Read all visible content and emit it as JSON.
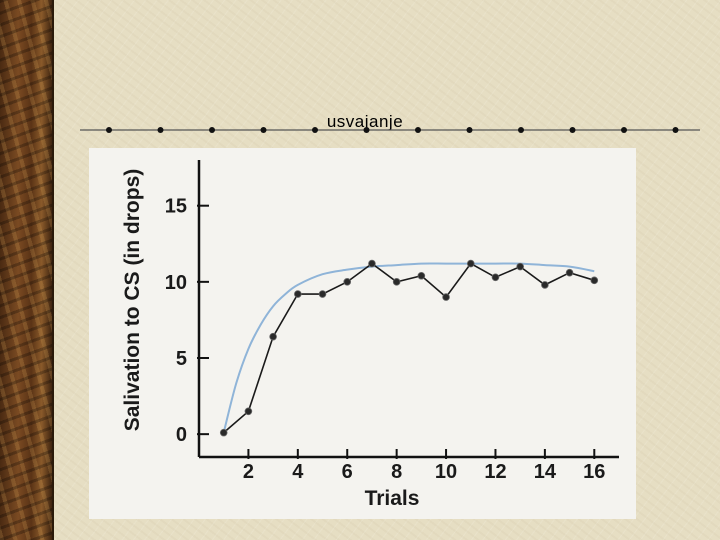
{
  "slide": {
    "title": "usvajanje"
  },
  "chart_data": {
    "type": "line",
    "title": "",
    "xlabel": "Trials",
    "ylabel": "Salivation to CS (in drops)",
    "xlim": [
      0,
      17
    ],
    "ylim": [
      -1.5,
      18
    ],
    "xticks": [
      2,
      4,
      6,
      8,
      10,
      12,
      14,
      16
    ],
    "yticks": [
      0,
      5,
      10,
      15
    ],
    "grid": false,
    "legend": "none",
    "series": [
      {
        "x": [
          1,
          2,
          3,
          4,
          5,
          6,
          7,
          8,
          9,
          10,
          11,
          12,
          13,
          14,
          15,
          16
        ],
        "values": [
          0.1,
          1.5,
          6.4,
          9.2,
          9.2,
          10.0,
          11.2,
          10.0,
          10.4,
          9.0,
          11.2,
          10.3,
          11.0,
          9.8,
          10.6,
          10.1
        ],
        "color": "#1a1a1a"
      },
      {
        "x": [
          1,
          1.5,
          2,
          2.5,
          3,
          3.5,
          4,
          5,
          6,
          7,
          8,
          9,
          10,
          11,
          12,
          13,
          14,
          15,
          16
        ],
        "values": [
          0.1,
          3.3,
          5.6,
          7.2,
          8.4,
          9.2,
          9.8,
          10.5,
          10.8,
          11.0,
          11.1,
          11.2,
          11.2,
          11.2,
          11.2,
          11.2,
          11.1,
          11.0,
          10.7
        ],
        "color": "#8fb4d8"
      }
    ]
  }
}
